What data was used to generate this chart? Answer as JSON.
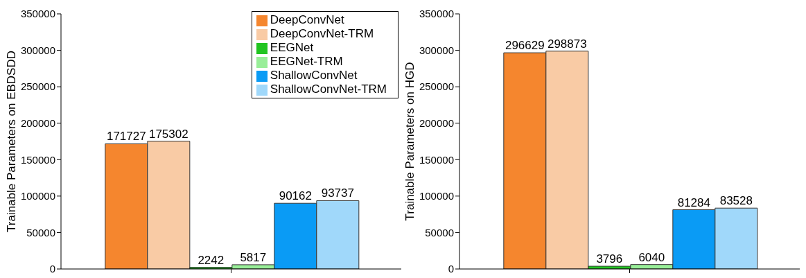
{
  "chart_data": [
    {
      "type": "bar",
      "ylabel": "Trainable Parameters on EBDSDD",
      "categories": [
        null
      ],
      "series": [
        {
          "name": "DeepConvNet",
          "color": "#f5862e",
          "values": [
            171727
          ]
        },
        {
          "name": "DeepConvNet-TRM",
          "color": "#f9cba5",
          "values": [
            175302
          ]
        },
        {
          "name": "EEGNet",
          "color": "#22c522",
          "values": [
            2242
          ]
        },
        {
          "name": "EEGNet-TRM",
          "color": "#98ee98",
          "values": [
            5817
          ]
        },
        {
          "name": "ShallowConvNet",
          "color": "#0a9bf5",
          "values": [
            90162
          ]
        },
        {
          "name": "ShallowConvNet-TRM",
          "color": "#a0d8fa",
          "values": [
            93737
          ]
        }
      ],
      "ylim": [
        0,
        350000
      ],
      "yticks": [
        0,
        50000,
        100000,
        150000,
        200000,
        250000,
        300000,
        350000
      ],
      "grid": false,
      "legend": "top right",
      "data_labels": true
    },
    {
      "type": "bar",
      "ylabel": "Trainable Parameters on HGD",
      "categories": [
        null
      ],
      "series": [
        {
          "color": "#f5862e",
          "values": [
            296629
          ]
        },
        {
          "color": "#f9cba5",
          "values": [
            298873
          ]
        },
        {
          "color": "#22c522",
          "values": [
            3796
          ]
        },
        {
          "color": "#98ee98",
          "values": [
            6040
          ]
        },
        {
          "color": "#0a9bf5",
          "values": [
            81284
          ]
        },
        {
          "color": "#a0d8fa",
          "values": [
            83528
          ]
        }
      ],
      "ylim": [
        0,
        350000
      ],
      "yticks": [
        0,
        50000,
        100000,
        150000,
        200000,
        250000,
        300000,
        350000
      ],
      "grid": false,
      "legend": false,
      "data_labels": true
    }
  ]
}
